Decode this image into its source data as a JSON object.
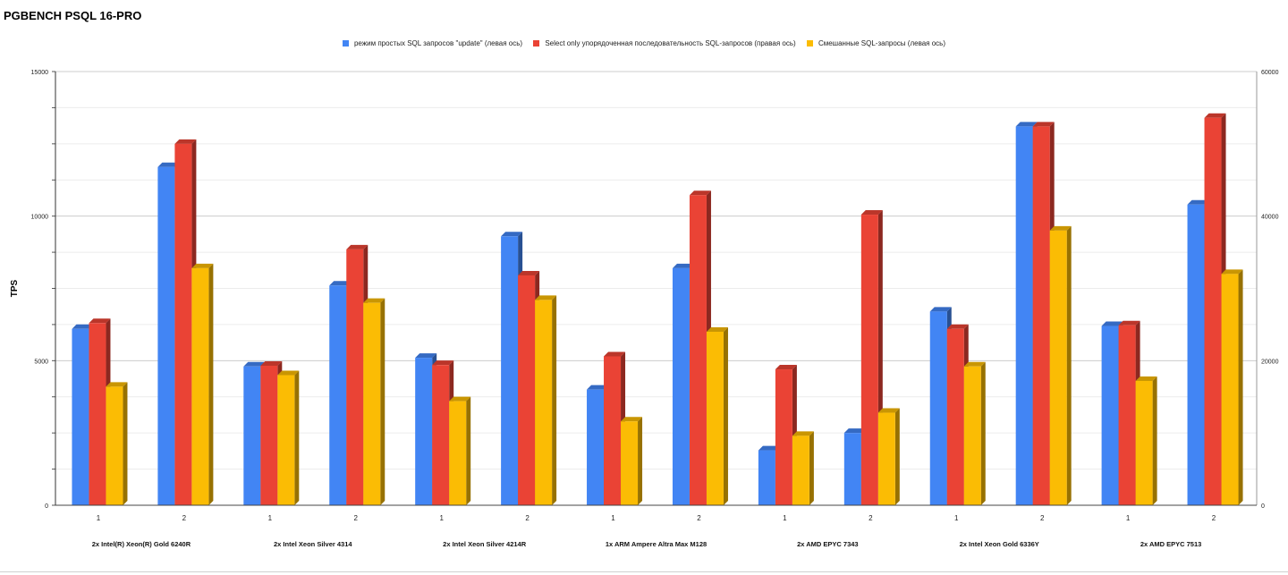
{
  "chart_data": {
    "type": "bar",
    "title": "PGBENCH PSQL 16-PRO",
    "ylabel": "TPS",
    "ylim_left": [
      0,
      15000
    ],
    "ylim_right": [
      0,
      60000
    ],
    "left_ticks": [
      "0",
      "5000",
      "10000",
      "15000"
    ],
    "right_ticks": [
      "0",
      "20000",
      "40000",
      "60000"
    ],
    "grid": true,
    "legend_position": "top",
    "groups": [
      {
        "name": "2x Intel(R) Xeon(R) Gold 6240R",
        "runs": [
          "1",
          "2"
        ]
      },
      {
        "name": "2x Intel Xeon Silver 4314",
        "runs": [
          "1",
          "2"
        ]
      },
      {
        "name": "2x Intel Xeon Silver 4214R",
        "runs": [
          "1",
          "2"
        ]
      },
      {
        "name": "1x ARM Ampere Altra Max M128",
        "runs": [
          "1",
          "2"
        ]
      },
      {
        "name": "2x AMD EPYC 7343",
        "runs": [
          "1",
          "2"
        ]
      },
      {
        "name": "2x Intel Xeon Gold 6336Y",
        "runs": [
          "1",
          "2"
        ]
      },
      {
        "name": "2x AMD EPYC 7513",
        "runs": [
          "1",
          "2"
        ]
      }
    ],
    "series": [
      {
        "name": "режим простых SQL запросов \"update\" (левая ось)",
        "axis": "left",
        "color": "#4285f4",
        "values": [
          6100,
          11700,
          4800,
          7600,
          5100,
          9300,
          4000,
          8200,
          1900,
          2500,
          6700,
          13100,
          6200,
          10400
        ]
      },
      {
        "name": "Select only упорядоченная последовательность SQL-запросов (правая ось)",
        "axis": "right",
        "color": "#ea4335",
        "values": [
          25200,
          50000,
          19300,
          35400,
          19400,
          31800,
          20600,
          42900,
          18800,
          40200,
          24400,
          52400,
          24900,
          53600
        ]
      },
      {
        "name": "Смешанные SQL-запросы (левая ось)",
        "axis": "left",
        "color": "#fbbc04",
        "values": [
          4100,
          8200,
          4500,
          7000,
          3600,
          7100,
          2900,
          6000,
          2400,
          3200,
          4800,
          9500,
          4300,
          8000
        ]
      }
    ]
  }
}
